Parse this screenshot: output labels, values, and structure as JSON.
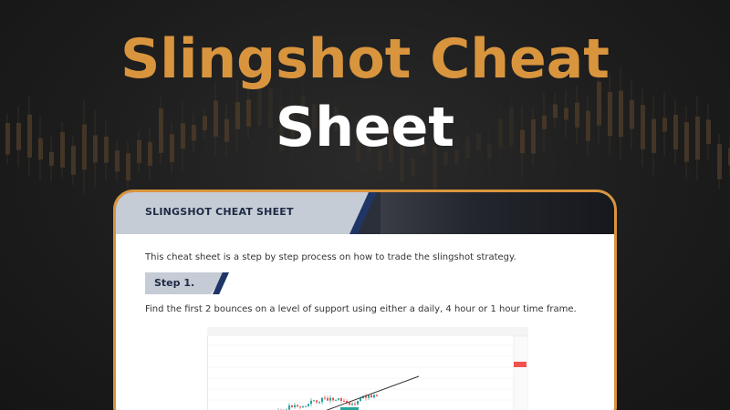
{
  "title": {
    "line1": "Slingshot Cheat",
    "line2": "Sheet"
  },
  "document": {
    "header_title": "SLINGSHOT CHEAT SHEET",
    "intro": "This cheat sheet is a step by step process on how to trade the slingshot strategy.",
    "step_label": "Step 1.",
    "step_description": "Find the first 2 bounces on a level of support using either a daily, 4 hour or 1 hour time frame."
  },
  "colors": {
    "accent_orange": "#d9953e",
    "navy": "#1f3566",
    "header_band": "#c5ccd6",
    "bullish": "#26a69a",
    "bearish": "#ef5350"
  }
}
